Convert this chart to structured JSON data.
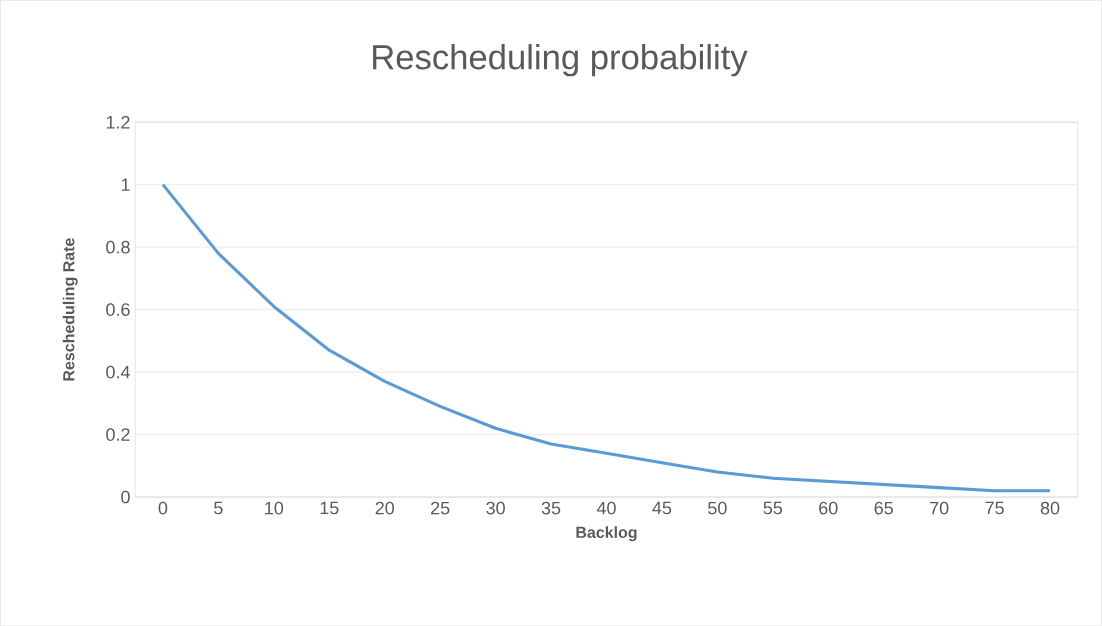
{
  "chart_data": {
    "type": "line",
    "title": "Rescheduling probability",
    "xlabel": "Backlog",
    "ylabel": "Rescheduling Rate",
    "categories": [
      "0",
      "5",
      "10",
      "15",
      "20",
      "25",
      "30",
      "35",
      "40",
      "45",
      "50",
      "55",
      "60",
      "65",
      "70",
      "75",
      "80"
    ],
    "series": [
      {
        "color": "#5b9bd5",
        "values": [
          1,
          0.78,
          0.61,
          0.47,
          0.37,
          0.29,
          0.22,
          0.17,
          0.14,
          0.11,
          0.08,
          0.06,
          0.05,
          0.04,
          0.03,
          0.02,
          0.02
        ]
      }
    ],
    "ylim": [
      0,
      1.2
    ],
    "yticks": [
      0,
      0.2,
      0.4,
      0.6,
      0.8,
      1,
      1.2
    ],
    "grid": "y",
    "marker": "none",
    "line_style": "solid"
  }
}
